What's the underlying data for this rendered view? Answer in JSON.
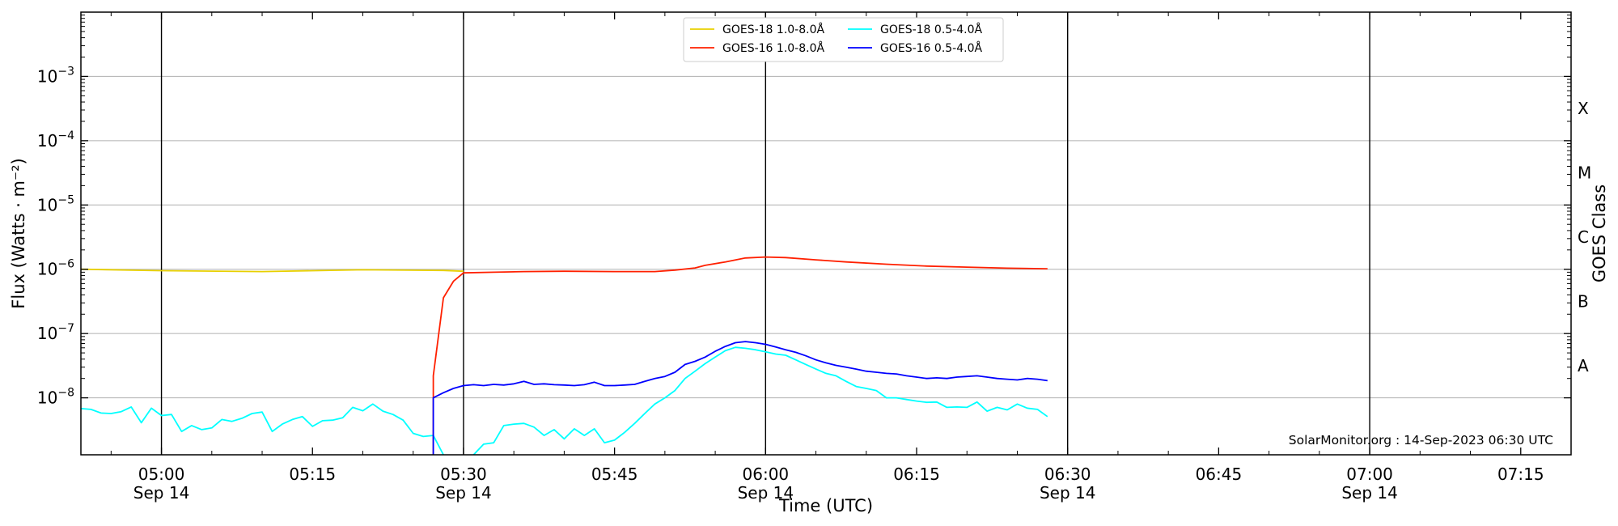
{
  "chart_data": {
    "type": "line",
    "xlabel": "Time (UTC)",
    "ylabel": "Flux (Watts · m⁻²)",
    "ylabel_right": "GOES Class",
    "y_scale": "log",
    "ylim": [
      1.3e-09,
      0.01
    ],
    "xlim": [
      "04:52",
      "07:20"
    ],
    "grid": "horizontal at each decade",
    "credit": "SolarMonitor.org : 14-Sep-2023 06:30 UTC",
    "legend_position": "top-center",
    "x_ticks": [
      {
        "t": "05:00",
        "label": "05:00",
        "date": "Sep 14"
      },
      {
        "t": "05:15",
        "label": "05:15",
        "date": ""
      },
      {
        "t": "05:30",
        "label": "05:30",
        "date": "Sep 14"
      },
      {
        "t": "05:45",
        "label": "05:45",
        "date": ""
      },
      {
        "t": "06:00",
        "label": "06:00",
        "date": "Sep 14"
      },
      {
        "t": "06:15",
        "label": "06:15",
        "date": ""
      },
      {
        "t": "06:30",
        "label": "06:30",
        "date": "Sep 14"
      },
      {
        "t": "06:45",
        "label": "06:45",
        "date": ""
      },
      {
        "t": "07:00",
        "label": "07:00",
        "date": "Sep 14"
      },
      {
        "t": "07:15",
        "label": "07:15",
        "date": ""
      }
    ],
    "vlines": [
      "05:00",
      "05:30",
      "06:00",
      "06:30",
      "07:00"
    ],
    "y_ticks": [
      {
        "value": 1e-08,
        "mant": "10",
        "exp": "−8"
      },
      {
        "value": 1e-07,
        "mant": "10",
        "exp": "−7"
      },
      {
        "value": 1e-06,
        "mant": "10",
        "exp": "−6"
      },
      {
        "value": 1e-05,
        "mant": "10",
        "exp": "−5"
      },
      {
        "value": 0.0001,
        "mant": "10",
        "exp": "−4"
      },
      {
        "value": 0.001,
        "mant": "10",
        "exp": "−3"
      }
    ],
    "goes_classes": [
      {
        "label": "A",
        "value": 3.16e-08
      },
      {
        "label": "B",
        "value": 3.16e-07
      },
      {
        "label": "C",
        "value": 3.16e-06
      },
      {
        "label": "M",
        "value": 3.16e-05
      },
      {
        "label": "X",
        "value": 0.000316
      }
    ],
    "series": [
      {
        "name": "GOES-18 1.0-8.0Å",
        "color": "#e8d000",
        "points": [
          [
            "04:52",
            1e-06
          ],
          [
            "05:00",
            9.5e-07
          ],
          [
            "05:10",
            9.2e-07
          ],
          [
            "05:20",
            9.8e-07
          ],
          [
            "05:28",
            9.6e-07
          ],
          [
            "05:30",
            9.3e-07
          ]
        ]
      },
      {
        "name": "GOES-18 0.5-4.0Å",
        "color": "#00ffff",
        "points": [
          [
            "04:52",
            6.8e-09
          ],
          [
            "04:53",
            6.6e-09
          ],
          [
            "04:54",
            5.8e-09
          ],
          [
            "04:55",
            5.7e-09
          ],
          [
            "04:56",
            6.1e-09
          ],
          [
            "04:57",
            7.2e-09
          ],
          [
            "04:58",
            4.1e-09
          ],
          [
            "04:59",
            6.9e-09
          ],
          [
            "05:00",
            5.3e-09
          ],
          [
            "05:01",
            5.5e-09
          ],
          [
            "05:02",
            3e-09
          ],
          [
            "05:03",
            3.7e-09
          ],
          [
            "05:04",
            3.2e-09
          ],
          [
            "05:05",
            3.4e-09
          ],
          [
            "05:06",
            4.6e-09
          ],
          [
            "05:07",
            4.3e-09
          ],
          [
            "05:08",
            4.8e-09
          ],
          [
            "05:09",
            5.7e-09
          ],
          [
            "05:10",
            6e-09
          ],
          [
            "05:11",
            3e-09
          ],
          [
            "05:12",
            3.9e-09
          ],
          [
            "05:13",
            4.6e-09
          ],
          [
            "05:14",
            5.1e-09
          ],
          [
            "05:15",
            3.6e-09
          ],
          [
            "05:16",
            4.4e-09
          ],
          [
            "05:17",
            4.5e-09
          ],
          [
            "05:18",
            4.9e-09
          ],
          [
            "05:19",
            7.1e-09
          ],
          [
            "05:20",
            6.3e-09
          ],
          [
            "05:21",
            8e-09
          ],
          [
            "05:22",
            6.2e-09
          ],
          [
            "05:23",
            5.5e-09
          ],
          [
            "05:24",
            4.5e-09
          ],
          [
            "05:25",
            2.8e-09
          ],
          [
            "05:26",
            2.5e-09
          ],
          [
            "05:27",
            2.6e-09
          ],
          [
            "05:28",
            1.3e-09
          ]
        ],
        "points2": [
          [
            "05:31",
            1.3e-09
          ],
          [
            "05:32",
            1.9e-09
          ],
          [
            "05:33",
            2e-09
          ],
          [
            "05:34",
            3.7e-09
          ],
          [
            "05:35",
            3.9e-09
          ],
          [
            "05:36",
            4e-09
          ],
          [
            "05:37",
            3.5e-09
          ],
          [
            "05:38",
            2.6e-09
          ],
          [
            "05:39",
            3.2e-09
          ],
          [
            "05:40",
            2.3e-09
          ],
          [
            "05:41",
            3.3e-09
          ],
          [
            "05:42",
            2.6e-09
          ],
          [
            "05:43",
            3.3e-09
          ],
          [
            "05:44",
            2e-09
          ],
          [
            "05:45",
            2.2e-09
          ],
          [
            "05:46",
            2.9e-09
          ],
          [
            "05:47",
            4e-09
          ],
          [
            "05:48",
            5.7e-09
          ],
          [
            "05:49",
            8e-09
          ],
          [
            "05:50",
            1e-08
          ],
          [
            "05:51",
            1.3e-08
          ],
          [
            "05:52",
            2e-08
          ],
          [
            "05:53",
            2.6e-08
          ],
          [
            "05:54",
            3.4e-08
          ],
          [
            "05:55",
            4.3e-08
          ],
          [
            "05:56",
            5.4e-08
          ],
          [
            "05:57",
            6.1e-08
          ],
          [
            "05:58",
            5.9e-08
          ],
          [
            "05:59",
            5.6e-08
          ],
          [
            "06:00",
            5.2e-08
          ],
          [
            "06:01",
            4.8e-08
          ],
          [
            "06:02",
            4.6e-08
          ],
          [
            "06:03",
            3.9e-08
          ],
          [
            "06:04",
            3.3e-08
          ],
          [
            "06:05",
            2.8e-08
          ],
          [
            "06:06",
            2.4e-08
          ],
          [
            "06:07",
            2.2e-08
          ],
          [
            "06:08",
            1.8e-08
          ],
          [
            "06:09",
            1.5e-08
          ],
          [
            "06:10",
            1.4e-08
          ],
          [
            "06:11",
            1.3e-08
          ],
          [
            "06:12",
            1e-08
          ],
          [
            "06:13",
            1e-08
          ],
          [
            "06:14",
            9.4e-09
          ],
          [
            "06:15",
            8.9e-09
          ],
          [
            "06:16",
            8.5e-09
          ],
          [
            "06:17",
            8.6e-09
          ],
          [
            "06:18",
            7.1e-09
          ],
          [
            "06:19",
            7.2e-09
          ],
          [
            "06:20",
            7.1e-09
          ],
          [
            "06:21",
            8.6e-09
          ],
          [
            "06:22",
            6.2e-09
          ],
          [
            "06:23",
            7.1e-09
          ],
          [
            "06:24",
            6.5e-09
          ],
          [
            "06:25",
            8e-09
          ],
          [
            "06:26",
            6.9e-09
          ],
          [
            "06:27",
            6.6e-09
          ],
          [
            "06:28",
            5.1e-09
          ]
        ]
      },
      {
        "name": "GOES-16 1.0-8.0Å",
        "color": "#ff2000",
        "points": [
          [
            "05:27",
            1.3e-09
          ],
          [
            "05:27",
            2.2e-08
          ],
          [
            "05:28",
            3.6e-07
          ],
          [
            "05:29",
            6.5e-07
          ],
          [
            "05:30",
            8.8e-07
          ],
          [
            "05:33",
            9e-07
          ],
          [
            "05:36",
            9.2e-07
          ],
          [
            "05:40",
            9.3e-07
          ],
          [
            "05:45",
            9.2e-07
          ],
          [
            "05:49",
            9.2e-07
          ],
          [
            "05:51",
            9.7e-07
          ],
          [
            "05:53",
            1.05e-06
          ],
          [
            "05:54",
            1.15e-06
          ],
          [
            "05:56",
            1.3e-06
          ],
          [
            "05:58",
            1.5e-06
          ],
          [
            "06:00",
            1.55e-06
          ],
          [
            "06:02",
            1.52e-06
          ],
          [
            "06:05",
            1.4e-06
          ],
          [
            "06:08",
            1.3e-06
          ],
          [
            "06:12",
            1.2e-06
          ],
          [
            "06:16",
            1.12e-06
          ],
          [
            "06:20",
            1.08e-06
          ],
          [
            "06:24",
            1.04e-06
          ],
          [
            "06:28",
            1.02e-06
          ]
        ]
      },
      {
        "name": "GOES-16 0.5-4.0Å",
        "color": "#0000ff",
        "points": [
          [
            "05:27",
            1.3e-09
          ],
          [
            "05:27",
            1e-08
          ],
          [
            "05:28",
            1.2e-08
          ],
          [
            "05:29",
            1.4e-08
          ],
          [
            "05:30",
            1.55e-08
          ],
          [
            "05:31",
            1.6e-08
          ],
          [
            "05:32",
            1.55e-08
          ],
          [
            "05:33",
            1.62e-08
          ],
          [
            "05:34",
            1.58e-08
          ],
          [
            "05:35",
            1.65e-08
          ],
          [
            "05:36",
            1.8e-08
          ],
          [
            "05:37",
            1.62e-08
          ],
          [
            "05:38",
            1.65e-08
          ],
          [
            "05:39",
            1.6e-08
          ],
          [
            "05:40",
            1.58e-08
          ],
          [
            "05:41",
            1.55e-08
          ],
          [
            "05:42",
            1.6e-08
          ],
          [
            "05:43",
            1.75e-08
          ],
          [
            "05:44",
            1.55e-08
          ],
          [
            "05:45",
            1.55e-08
          ],
          [
            "05:46",
            1.58e-08
          ],
          [
            "05:47",
            1.62e-08
          ],
          [
            "05:48",
            1.8e-08
          ],
          [
            "05:49",
            2e-08
          ],
          [
            "05:50",
            2.15e-08
          ],
          [
            "05:51",
            2.5e-08
          ],
          [
            "05:52",
            3.3e-08
          ],
          [
            "05:53",
            3.7e-08
          ],
          [
            "05:54",
            4.3e-08
          ],
          [
            "05:55",
            5.3e-08
          ],
          [
            "05:56",
            6.3e-08
          ],
          [
            "05:57",
            7.2e-08
          ],
          [
            "05:58",
            7.5e-08
          ],
          [
            "05:59",
            7.2e-08
          ],
          [
            "06:00",
            6.8e-08
          ],
          [
            "06:01",
            6.2e-08
          ],
          [
            "06:02",
            5.6e-08
          ],
          [
            "06:03",
            5.1e-08
          ],
          [
            "06:04",
            4.5e-08
          ],
          [
            "06:05",
            3.9e-08
          ],
          [
            "06:06",
            3.5e-08
          ],
          [
            "06:07",
            3.2e-08
          ],
          [
            "06:08",
            3e-08
          ],
          [
            "06:09",
            2.8e-08
          ],
          [
            "06:10",
            2.6e-08
          ],
          [
            "06:11",
            2.5e-08
          ],
          [
            "06:12",
            2.4e-08
          ],
          [
            "06:13",
            2.35e-08
          ],
          [
            "06:14",
            2.2e-08
          ],
          [
            "06:15",
            2.1e-08
          ],
          [
            "06:16",
            2e-08
          ],
          [
            "06:17",
            2.05e-08
          ],
          [
            "06:18",
            2e-08
          ],
          [
            "06:19",
            2.1e-08
          ],
          [
            "06:20",
            2.15e-08
          ],
          [
            "06:21",
            2.2e-08
          ],
          [
            "06:22",
            2.1e-08
          ],
          [
            "06:23",
            2e-08
          ],
          [
            "06:24",
            1.95e-08
          ],
          [
            "06:25",
            1.9e-08
          ],
          [
            "06:26",
            2e-08
          ],
          [
            "06:27",
            1.95e-08
          ],
          [
            "06:28",
            1.85e-08
          ]
        ]
      }
    ]
  }
}
